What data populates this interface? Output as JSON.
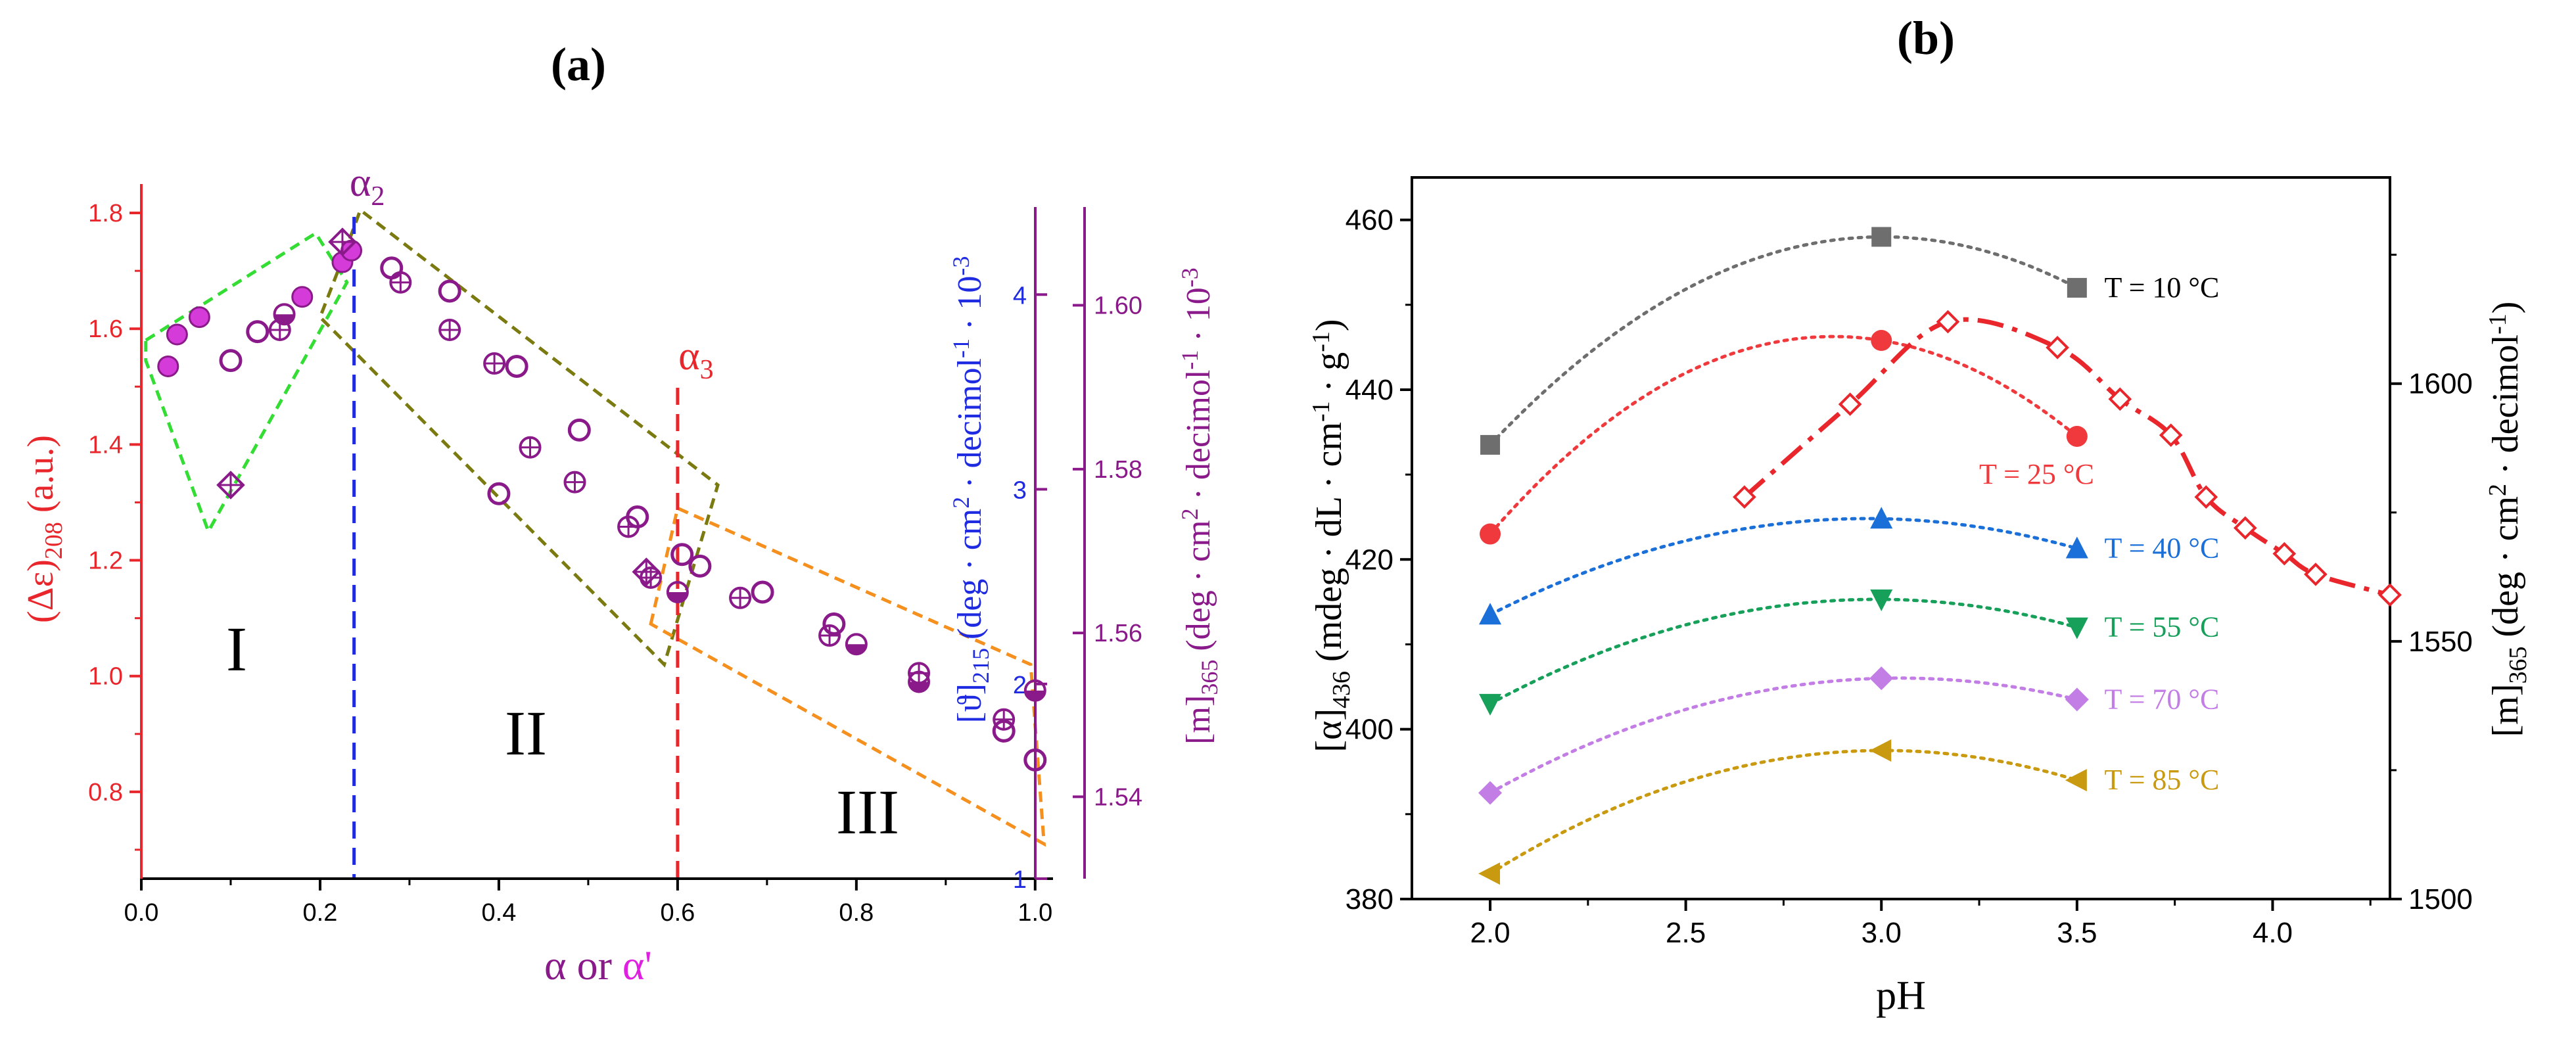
{
  "panels": [
    {
      "id": "a",
      "label_open": "(",
      "label_letter": "a",
      "label_close": ")",
      "xlabel_main": "α or ",
      "xlabel_prime": "α'",
      "xlim": [
        0,
        1.02
      ],
      "xticks": [
        "0.0",
        "0.2",
        "0.4",
        "0.6",
        "0.8",
        "1.0"
      ],
      "xtick_values": [
        0,
        0.2,
        0.4,
        0.6,
        0.8,
        1.0
      ],
      "left_axis": {
        "label": "(Δε)208 (a.u.)",
        "label_main": "(Δε)",
        "label_sub": "208",
        "label_tail": " (a.u.)",
        "range": [
          0.65,
          1.85
        ],
        "ticks": [
          "0.8",
          "1.0",
          "1.2",
          "1.4",
          "1.6",
          "1.8"
        ],
        "tick_values": [
          0.8,
          1.0,
          1.2,
          1.4,
          1.6,
          1.8
        ],
        "color": "#e8262c"
      },
      "mid_axis": {
        "label_main": "[ϑ]",
        "label_sub": "215",
        "label_tail": " (deg · cm",
        "label_sup": "2",
        "label_tail2": " · decimol",
        "label_sup2": "-1",
        "label_tail3": " · 10",
        "label_sup3": "-3",
        "range": [
          1,
          4.45
        ],
        "ticks": [
          "1",
          "2",
          "3",
          "4"
        ],
        "tick_values": [
          1,
          2,
          3,
          4
        ],
        "color": "#1f2be0"
      },
      "right_axis": {
        "label_main": "[m]",
        "label_sub": "365",
        "label_tail": " (deg · cm",
        "label_sup": "2",
        "label_tail2": " · decimol",
        "label_sup2": "-1",
        "label_tail3": " · 10",
        "label_sup3": "-3",
        "range": [
          1.53,
          1.612
        ],
        "ticks": [
          "1.54",
          "1.56",
          "1.58",
          "1.60"
        ],
        "tick_values": [
          1.54,
          1.56,
          1.58,
          1.6
        ],
        "color": "#8a1a8a"
      },
      "annotations": {
        "alpha2_main": "α",
        "alpha2_sub": "2",
        "alpha2_x": 0.238,
        "alpha3_main": "α",
        "alpha3_sub": "3",
        "alpha3_x": 0.6,
        "region_I": "I",
        "region_II": "II",
        "region_III": "III"
      },
      "regions": {
        "green": [
          [
            0.005,
            1.58
          ],
          [
            0.195,
            1.765
          ],
          [
            0.23,
            1.68
          ],
          [
            0.075,
            1.25
          ],
          [
            0.005,
            1.545
          ]
        ],
        "olive": [
          [
            0.22,
            1.7
          ],
          [
            0.245,
            1.805
          ],
          [
            0.645,
            1.33
          ],
          [
            0.585,
            1.02
          ],
          [
            0.2,
            1.62
          ]
        ],
        "orange": [
          [
            0.57,
            1.09
          ],
          [
            0.6,
            1.29
          ],
          [
            0.995,
            1.02
          ],
          [
            1.01,
            0.71
          ]
        ]
      },
      "series": [
        {
          "name": "filled circles (α')",
          "marker": "filled-circle",
          "color": "#d43bd9",
          "points": [
            [
              0.03,
              1.535
            ],
            [
              0.04,
              1.59
            ],
            [
              0.065,
              1.62
            ],
            [
              0.18,
              1.655
            ],
            [
              0.225,
              1.715
            ],
            [
              0.235,
              1.735
            ]
          ]
        },
        {
          "name": "open circles",
          "marker": "open-circle",
          "color": "#8a1a8a",
          "points": [
            [
              0.1,
              1.545
            ],
            [
              0.13,
              1.595
            ],
            [
              0.28,
              1.705
            ],
            [
              0.345,
              1.665
            ],
            [
              0.4,
              1.315
            ],
            [
              0.42,
              1.535
            ],
            [
              0.49,
              1.425
            ],
            [
              0.555,
              1.275
            ],
            [
              0.605,
              1.21
            ],
            [
              0.625,
              1.19
            ],
            [
              0.695,
              1.145
            ],
            [
              0.775,
              1.09
            ],
            [
              0.965,
              0.905
            ],
            [
              1.0,
              0.855
            ]
          ]
        },
        {
          "name": "crossed circles",
          "marker": "crossed-circle",
          "color": "#8a1a8a",
          "points": [
            [
              0.155,
              1.598
            ],
            [
              0.29,
              1.68
            ],
            [
              0.345,
              1.598
            ],
            [
              0.395,
              1.54
            ],
            [
              0.435,
              1.395
            ],
            [
              0.485,
              1.335
            ],
            [
              0.545,
              1.258
            ],
            [
              0.57,
              1.17
            ],
            [
              0.67,
              1.135
            ],
            [
              0.77,
              1.07
            ],
            [
              0.87,
              1.005
            ],
            [
              0.965,
              0.925
            ]
          ]
        },
        {
          "name": "crossed diamonds",
          "marker": "crossed-diamond",
          "color": "#8a1a8a",
          "points": [
            [
              0.1,
              1.33
            ],
            [
              0.225,
              1.75
            ],
            [
              0.565,
              1.18
            ]
          ]
        },
        {
          "name": "half filled circles",
          "marker": "half-circle",
          "color": "#8a1a8a",
          "points": [
            [
              0.16,
              1.625
            ],
            [
              0.6,
              1.145
            ],
            [
              0.8,
              1.055
            ],
            [
              0.87,
              0.99
            ],
            [
              1.0,
              0.975
            ]
          ]
        }
      ]
    },
    {
      "id": "b",
      "label_open": "(",
      "label_letter": "b",
      "label_close": ")",
      "xlabel": "pH",
      "xlim": [
        1.8,
        4.3
      ],
      "xticks": [
        "2.0",
        "2.5",
        "3.0",
        "3.5",
        "4.0"
      ],
      "xtick_values": [
        2.0,
        2.5,
        3.0,
        3.5,
        4.0
      ],
      "left_axis": {
        "label_main": "[α]",
        "label_sub": "436",
        "label_tail": " (mdeg · dL · cm",
        "label_sup": "-1",
        "label_tail2": " · g",
        "label_sup2": "-1",
        "label_tail3": ")",
        "range": [
          380,
          465
        ],
        "ticks": [
          "380",
          "400",
          "420",
          "440",
          "460"
        ],
        "tick_values": [
          380,
          400,
          420,
          440,
          460
        ]
      },
      "right_axis": {
        "label_main": "[m]",
        "label_sub": "365",
        "label_tail": " (deg · cm",
        "label_sup": "2",
        "label_tail2": " · decimol",
        "label_sup2": "-1",
        "label_tail3": ")",
        "range": [
          1500,
          1640
        ],
        "ticks": [
          "1500",
          "1550",
          "1600"
        ],
        "tick_values": [
          1500,
          1550,
          1600
        ]
      },
      "chart_data": {
        "type": "scatter",
        "x": [
          2.0,
          3.0,
          3.5
        ],
        "series": [
          {
            "name": "T = 10 °C",
            "marker": "square",
            "color": "#6e6e6e",
            "values": [
              433.5,
              458,
              452
            ]
          },
          {
            "name": "T = 25 °C",
            "marker": "circle",
            "color": "#f0393c",
            "values": [
              423,
              445.8,
              434.5
            ]
          },
          {
            "name": "T = 40 °C",
            "marker": "triangle-up",
            "color": "#1a6fd8",
            "values": [
              413.5,
              424.8,
              421.3
            ]
          },
          {
            "name": "T = 55 °C",
            "marker": "triangle-down",
            "color": "#16a05a",
            "values": [
              403,
              415.3,
              412
            ]
          },
          {
            "name": "T = 70 °C",
            "marker": "diamond",
            "color": "#c37ee6",
            "values": [
              392.5,
              406,
              403.5
            ]
          },
          {
            "name": "T = 85 °C",
            "marker": "triangle-left",
            "color": "#c99a10",
            "values": [
              383,
              397.5,
              394
            ]
          }
        ],
        "m365_series": {
          "name": "[m]365",
          "marker": "open-diamond",
          "color": "#e8262c",
          "x": [
            2.65,
            2.92,
            3.17,
            3.45,
            3.61,
            3.74,
            3.83,
            3.93,
            4.03,
            4.11,
            4.3
          ],
          "values": [
            1578,
            1596,
            1612,
            1607,
            1597,
            1590,
            1578,
            1572,
            1567,
            1563,
            1559
          ]
        }
      }
    }
  ]
}
